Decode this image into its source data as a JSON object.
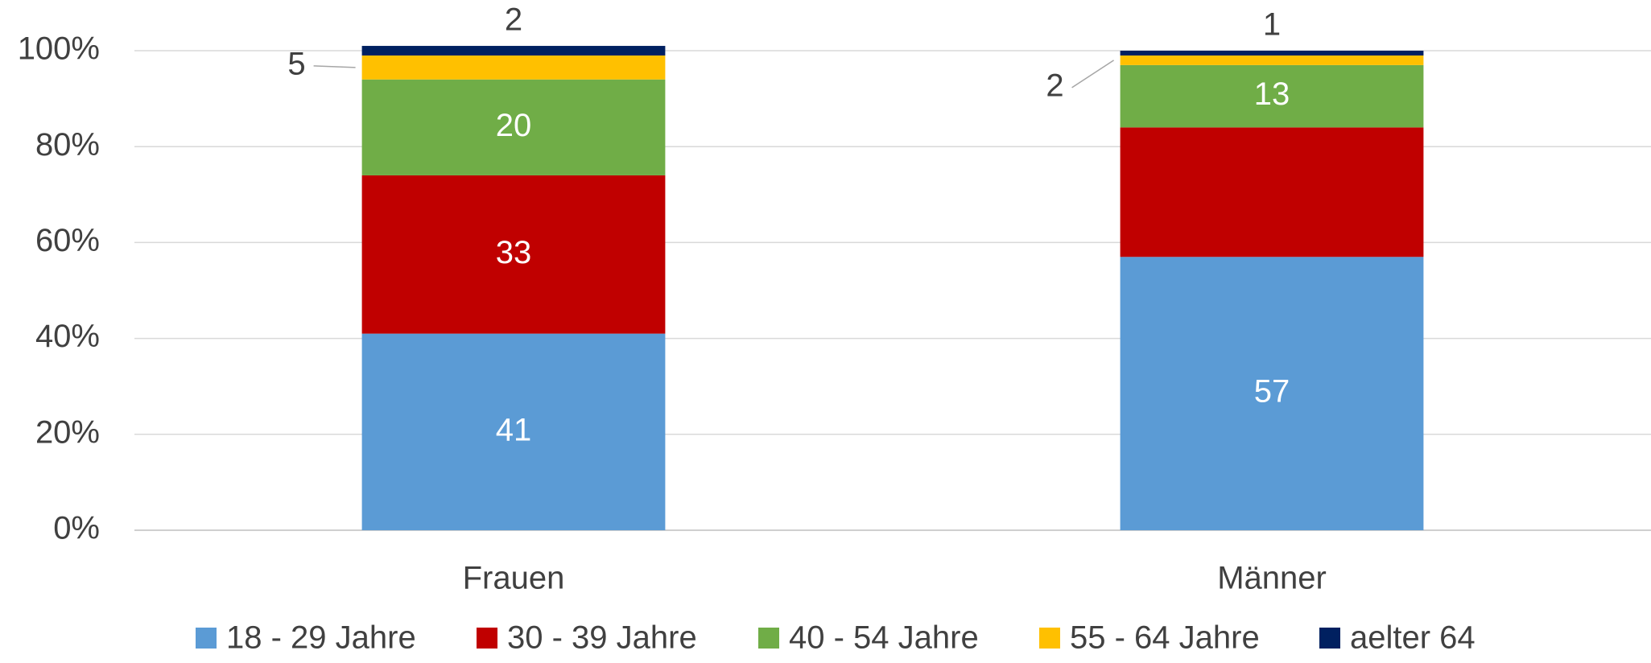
{
  "chart_data": {
    "type": "stacked_bar",
    "categories": [
      "Frauen",
      "Männer"
    ],
    "series": [
      {
        "name": "18 - 29 Jahre",
        "color": "#5b9bd5",
        "values": [
          41,
          57
        ]
      },
      {
        "name": "30 - 39 Jahre",
        "color": "#c00000",
        "values": [
          33,
          27
        ],
        "value_labels": [
          "33",
          null
        ]
      },
      {
        "name": "40 - 54 Jahre",
        "color": "#70ad47",
        "values": [
          20,
          13
        ]
      },
      {
        "name": "55 - 64 Jahre",
        "color": "#ffc000",
        "values": [
          5,
          2
        ]
      },
      {
        "name": "aelter 64",
        "color": "#002060",
        "values": [
          2,
          1
        ]
      }
    ],
    "ylim": [
      0,
      100
    ],
    "yticks": [
      {
        "value": 0,
        "label": "0%"
      },
      {
        "value": 20,
        "label": "20%"
      },
      {
        "value": 40,
        "label": "40%"
      },
      {
        "value": 60,
        "label": "60%"
      },
      {
        "value": 80,
        "label": "80%"
      },
      {
        "value": 100,
        "label": "100%"
      }
    ],
    "grid": true,
    "legend": "bottom"
  }
}
